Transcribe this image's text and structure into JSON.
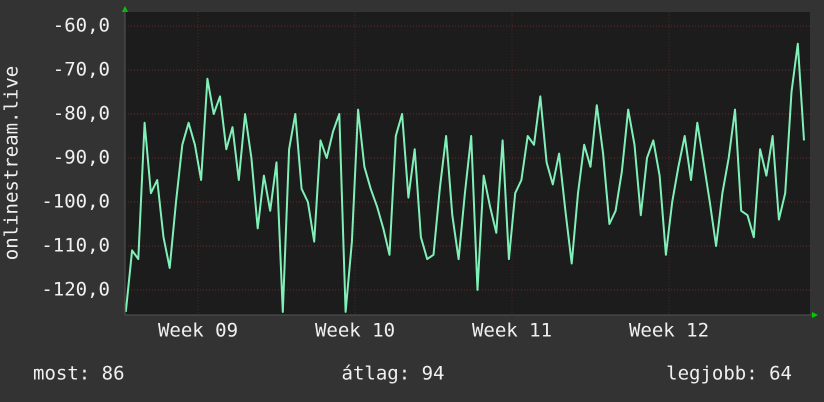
{
  "chart_data": {
    "type": "line",
    "y_label": "onlinestream.live",
    "x": [
      8.54,
      8.58,
      8.62,
      8.66,
      8.7,
      8.74,
      8.78,
      8.82,
      8.86,
      8.9,
      8.94,
      8.98,
      9.02,
      9.06,
      9.1,
      9.14,
      9.18,
      9.22,
      9.26,
      9.3,
      9.34,
      9.38,
      9.42,
      9.46,
      9.5,
      9.54,
      9.58,
      9.62,
      9.66,
      9.7,
      9.74,
      9.78,
      9.82,
      9.86,
      9.9,
      9.94,
      9.98,
      10.02,
      10.06,
      10.1,
      10.14,
      10.18,
      10.22,
      10.26,
      10.3,
      10.34,
      10.38,
      10.42,
      10.46,
      10.5,
      10.54,
      10.58,
      10.62,
      10.66,
      10.7,
      10.74,
      10.78,
      10.82,
      10.86,
      10.9,
      10.94,
      10.98,
      11.02,
      11.06,
      11.1,
      11.14,
      11.18,
      11.22,
      11.26,
      11.3,
      11.34,
      11.38,
      11.42,
      11.46,
      11.5,
      11.54,
      11.58,
      11.62,
      11.66,
      11.7,
      11.74,
      11.78,
      11.82,
      11.86,
      11.9,
      11.94,
      11.98,
      12.02,
      12.06,
      12.1,
      12.14,
      12.18,
      12.22,
      12.26,
      12.3,
      12.34,
      12.38,
      12.42,
      12.46,
      12.5,
      12.54,
      12.58,
      12.62,
      12.66,
      12.7,
      12.74,
      12.78,
      12.82,
      12.86
    ],
    "series": [
      {
        "color": "#80f0b8",
        "values": [
          -125,
          -111,
          -113,
          -82,
          -98,
          -95,
          -108,
          -115,
          -100,
          -87,
          -82,
          -87,
          -95,
          -72,
          -80,
          -76,
          -88,
          -83,
          -95,
          -80,
          -90,
          -106,
          -94,
          -102,
          -91,
          -125,
          -88,
          -80,
          -97,
          -100,
          -109,
          -86,
          -90,
          -84,
          -80,
          -125,
          -109,
          -79,
          -92,
          -97,
          -101,
          -106,
          -112,
          -85,
          -80,
          -99,
          -88,
          -108,
          -113,
          -112,
          -97,
          -85,
          -103,
          -113,
          -98,
          -85,
          -120,
          -94,
          -101,
          -107,
          -86,
          -113,
          -98,
          -95,
          -85,
          -87,
          -76,
          -91,
          -96,
          -89,
          -102,
          -114,
          -98,
          -87,
          -92,
          -78,
          -89,
          -105,
          -102,
          -93,
          -79,
          -87,
          -103,
          -90,
          -86,
          -94,
          -112,
          -100,
          -92,
          -85,
          -95,
          -82,
          -91,
          -100,
          -110,
          -98,
          -90,
          -79,
          -102,
          -103,
          -108,
          -88,
          -94,
          -85,
          -104,
          -98,
          -75,
          -64,
          -86
        ]
      }
    ],
    "xlim": [
      8.535,
      12.898
    ],
    "xticks": [
      {
        "value": 9,
        "label": "Week 09"
      },
      {
        "value": 10,
        "label": "Week 10"
      },
      {
        "value": 11,
        "label": "Week 11"
      },
      {
        "value": 12,
        "label": "Week 12"
      }
    ],
    "ylim": [
      -125.7,
      -56.8
    ],
    "yticks": [
      {
        "value": -120,
        "label": "-120,0"
      },
      {
        "value": -110,
        "label": "-110,0"
      },
      {
        "value": -100,
        "label": "-100,0"
      },
      {
        "value": -90,
        "label": "-90,0"
      },
      {
        "value": -80,
        "label": "-80,0"
      },
      {
        "value": -70,
        "label": "-70,0"
      },
      {
        "value": -60,
        "label": "-60,0"
      }
    ],
    "grid": true,
    "footer": [
      "most: 86",
      "átlag: 94",
      "legjobb: 64"
    ]
  }
}
